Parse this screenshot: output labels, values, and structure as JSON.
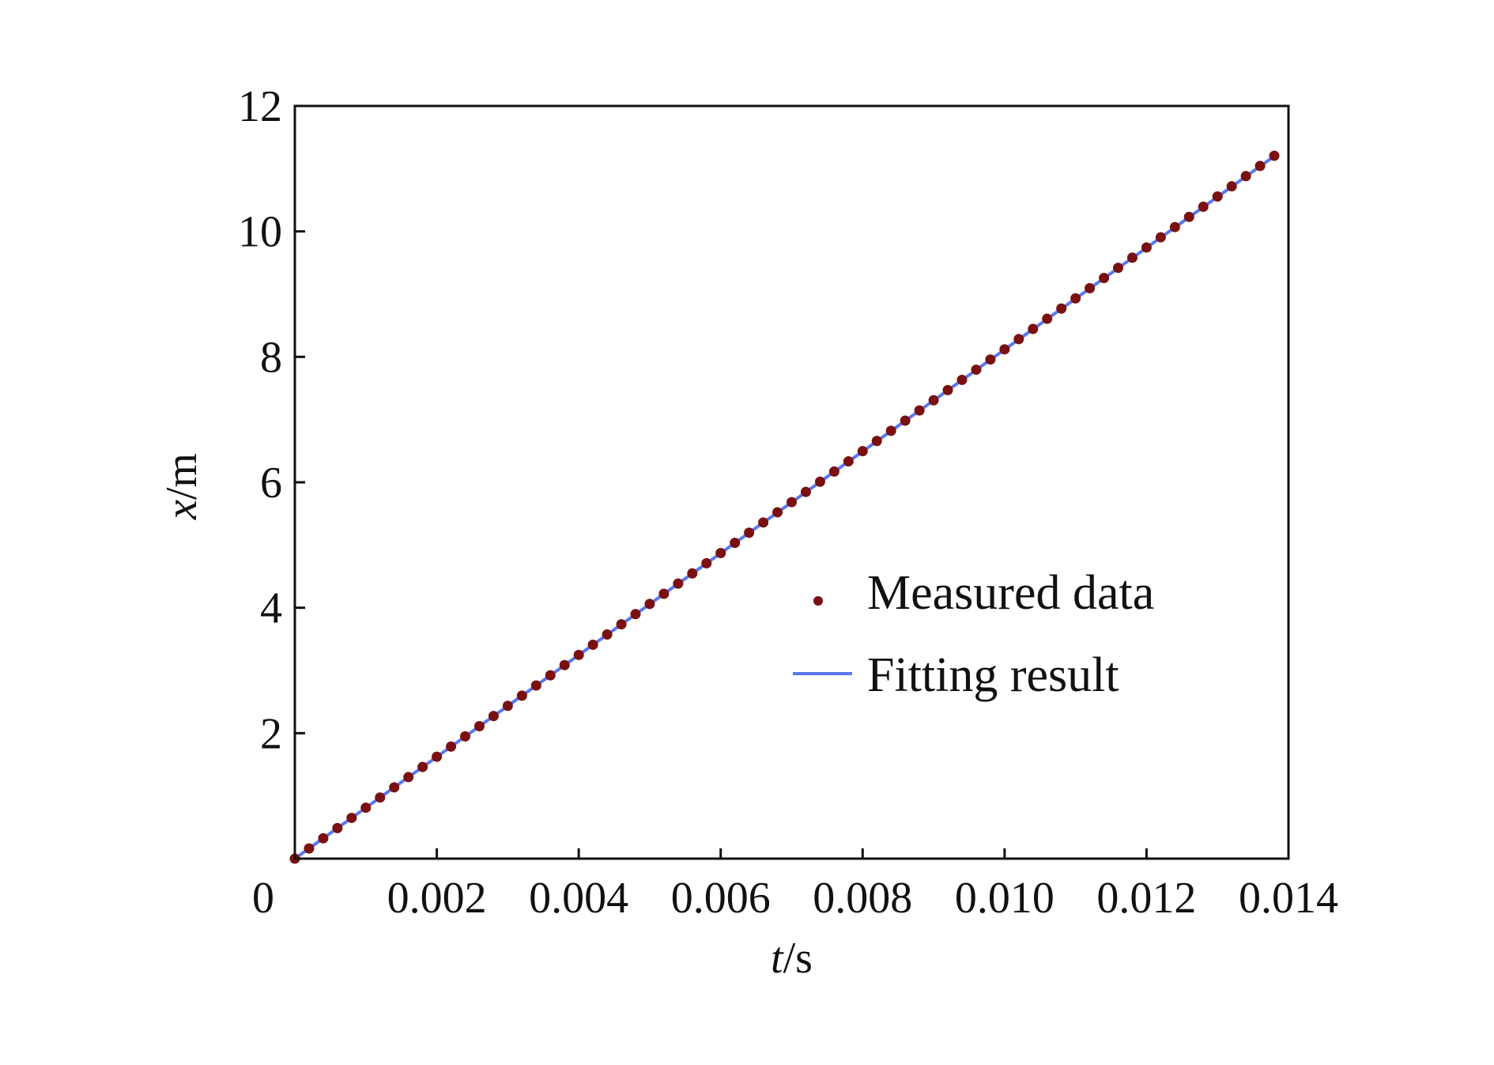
{
  "chart_data": {
    "type": "scatter",
    "xlabel": {
      "var": "t",
      "unit": "/s"
    },
    "ylabel": {
      "var": "x",
      "unit": "/m"
    },
    "xlim": [
      0,
      0.014
    ],
    "ylim": [
      0,
      12
    ],
    "origin_label": "0",
    "x_ticks": [
      0.002,
      0.004,
      0.006,
      0.008,
      0.01,
      0.012,
      0.014
    ],
    "x_tick_labels": [
      "0.002",
      "0.004",
      "0.006",
      "0.008",
      "0.010",
      "0.012",
      "0.014"
    ],
    "y_ticks": [
      2,
      4,
      6,
      8,
      10,
      12
    ],
    "y_tick_labels": [
      "2",
      "4",
      "6",
      "8",
      "10",
      "12"
    ],
    "grid": false,
    "legend": {
      "position": "center-right"
    },
    "series": [
      {
        "name": "Measured data",
        "kind": "markers",
        "color": "#7a1010",
        "x_start": 0.0,
        "x_step": 0.0002,
        "count": 70,
        "slope": 812.0,
        "intercept": 0.0
      },
      {
        "name": "Fitting result",
        "kind": "line",
        "color": "#5b78f0",
        "x": [
          0.0,
          0.0138
        ],
        "y": [
          0.0,
          11.2
        ]
      }
    ]
  }
}
